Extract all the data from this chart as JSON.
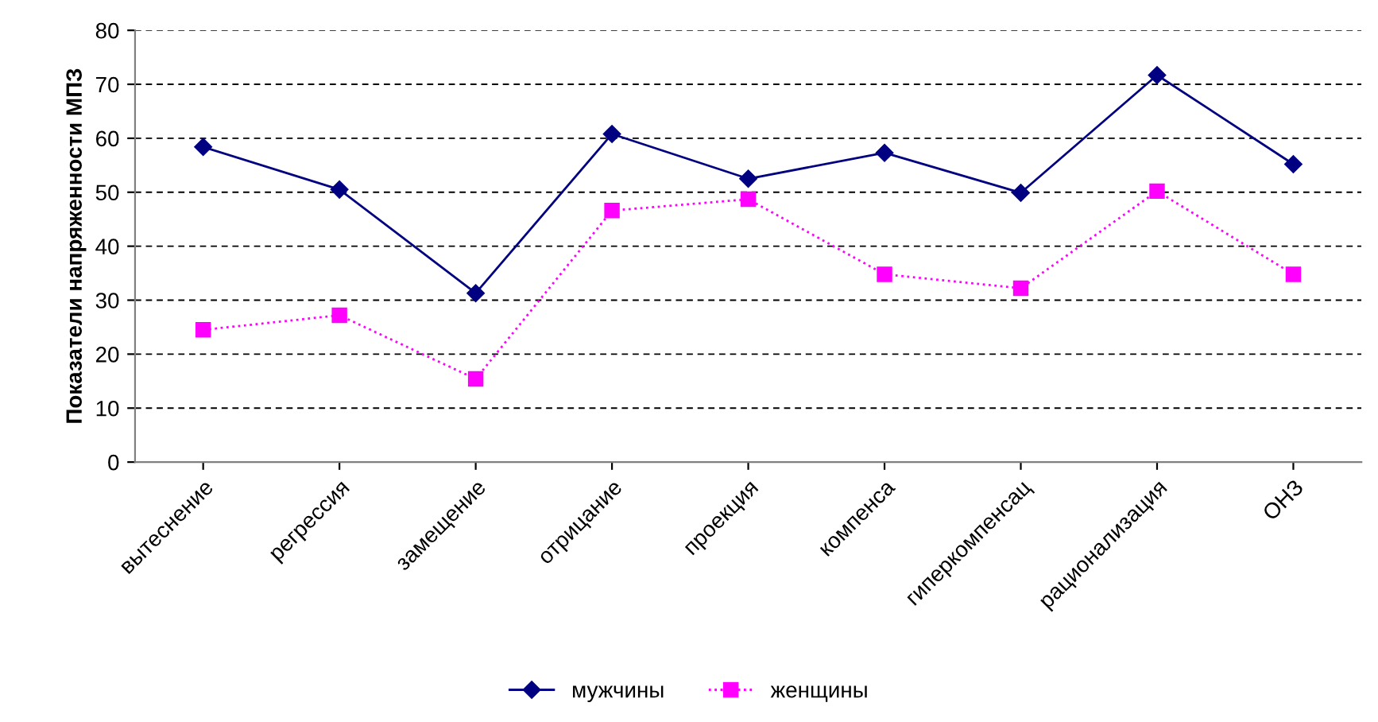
{
  "chart_data": {
    "type": "line",
    "ylabel": "Показатели напряженности МПЗ",
    "categories": [
      "вытеснение",
      "регрессия",
      "замещение",
      "отрицание",
      "проекция",
      "компенса",
      "гиперкомпенсац",
      "рационализация",
      "ОНЗ"
    ],
    "series": [
      {
        "name": "мужчины",
        "color": "#000080",
        "marker": "diamond",
        "line_style": "solid",
        "values": [
          58.4,
          50.5,
          31.3,
          60.8,
          52.5,
          57.3,
          49.9,
          71.7,
          55.2
        ]
      },
      {
        "name": "женщины",
        "color": "#ff00ff",
        "marker": "square",
        "line_style": "dotted",
        "values": [
          24.5,
          27.2,
          15.4,
          46.6,
          48.7,
          34.8,
          32.2,
          50.2,
          34.8
        ]
      }
    ],
    "ylim": [
      0,
      80
    ],
    "yticks": [
      0,
      10,
      20,
      30,
      40,
      50,
      60,
      70,
      80
    ],
    "grid": "y",
    "legend": "bottom"
  }
}
